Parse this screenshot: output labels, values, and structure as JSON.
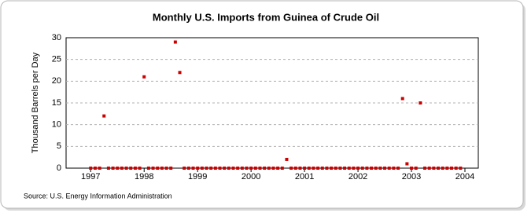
{
  "chart_data": {
    "type": "scatter",
    "title": "Monthly U.S. Imports from Guinea of Crude Oil",
    "y_label": "Thousand Barrels per Day",
    "source": "Source: U.S. Energy Information Administration",
    "x": [
      1997,
      1997.0833,
      1997.1667,
      1997.25,
      1997.3333,
      1997.4167,
      1997.5,
      1997.5833,
      1997.6667,
      1997.75,
      1997.8333,
      1997.9167,
      1998,
      1998.0833,
      1998.1667,
      1998.25,
      1998.3333,
      1998.4167,
      1998.5,
      1998.5833,
      1998.6667,
      1998.75,
      1998.8333,
      1998.9167,
      1999,
      1999.0833,
      1999.1667,
      1999.25,
      1999.3333,
      1999.4167,
      1999.5,
      1999.5833,
      1999.6667,
      1999.75,
      1999.8333,
      1999.9167,
      2000,
      2000.0833,
      2000.1667,
      2000.25,
      2000.3333,
      2000.4167,
      2000.5,
      2000.5833,
      2000.6667,
      2000.75,
      2000.8333,
      2000.9167,
      2001,
      2001.0833,
      2001.1667,
      2001.25,
      2001.3333,
      2001.4167,
      2001.5,
      2001.5833,
      2001.6667,
      2001.75,
      2001.8333,
      2001.9167,
      2002,
      2002.0833,
      2002.1667,
      2002.25,
      2002.3333,
      2002.4167,
      2002.5,
      2002.5833,
      2002.6667,
      2002.75,
      2002.8333,
      2002.9167,
      2003,
      2003.0833,
      2003.1667,
      2003.25,
      2003.3333,
      2003.4167,
      2003.5,
      2003.5833,
      2003.6667,
      2003.75,
      2003.8333,
      2003.9167
    ],
    "series": [
      {
        "name": "Imports",
        "color": "#cc0000",
        "values": [
          0,
          0,
          0,
          12,
          0,
          0,
          0,
          0,
          0,
          0,
          0,
          0,
          21,
          0,
          0,
          0,
          0,
          0,
          0,
          29,
          22,
          0,
          0,
          0,
          0,
          0,
          0,
          0,
          0,
          0,
          0,
          0,
          0,
          0,
          0,
          0,
          0,
          0,
          0,
          0,
          0,
          0,
          0,
          0,
          2,
          0,
          0,
          0,
          0,
          0,
          0,
          0,
          0,
          0,
          0,
          0,
          0,
          0,
          0,
          0,
          0,
          0,
          0,
          0,
          0,
          0,
          0,
          0,
          0,
          0,
          16,
          1,
          0,
          0,
          15,
          0,
          0,
          0,
          0,
          0,
          0,
          0,
          0,
          0
        ]
      }
    ],
    "xlim": [
      1996.54,
      2004.25
    ],
    "xticks": [
      1997,
      1998,
      1999,
      2000,
      2001,
      2002,
      2003,
      2004
    ],
    "ylim": [
      0,
      30
    ],
    "yticks": [
      0,
      5,
      10,
      15,
      20,
      25,
      30
    ],
    "grid": true
  }
}
